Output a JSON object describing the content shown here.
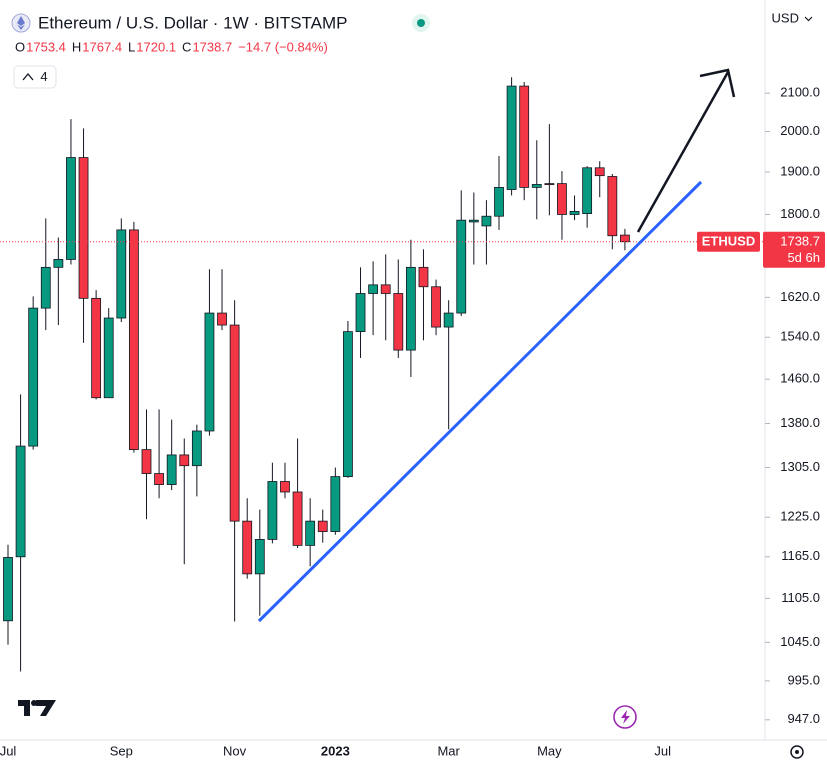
{
  "chart_data": {
    "type": "candlestick",
    "title": "Ethereum / U.S. Dollar · 1W · BITSTAMP",
    "ohlc_letters": [
      "O",
      "H",
      "L",
      "C"
    ],
    "change": "−14.7 (−0.84%)",
    "indicators": 4,
    "currency": "USD",
    "symbol": "ETHUSD",
    "countdown": "5d 6h",
    "up_color": "#089981",
    "down_color": "#f23645",
    "log_scale": true,
    "grid": false,
    "ylim": [
      923,
      2364
    ],
    "yticks": [
      {
        "value": 947,
        "label": "947.0"
      },
      {
        "value": 995,
        "label": "995.0"
      },
      {
        "value": 1045,
        "label": "1045.0"
      },
      {
        "value": 1105,
        "label": "1105.0"
      },
      {
        "value": 1165,
        "label": "1165.0"
      },
      {
        "value": 1225,
        "label": "1225.0"
      },
      {
        "value": 1305,
        "label": "1305.0"
      },
      {
        "value": 1380,
        "label": "1380.0"
      },
      {
        "value": 1460,
        "label": "1460.0"
      },
      {
        "value": 1540,
        "label": "1540.0"
      },
      {
        "value": 1620,
        "label": "1620.0"
      },
      {
        "value": 1800,
        "label": "1800.0"
      },
      {
        "value": 1900,
        "label": "1900.0"
      },
      {
        "value": 2000,
        "label": "2000.0"
      },
      {
        "value": 2100,
        "label": "2100.0"
      }
    ],
    "categories": [
      "Jul",
      null,
      null,
      null,
      null,
      null,
      null,
      null,
      null,
      "Sep",
      null,
      null,
      null,
      null,
      null,
      null,
      null,
      null,
      "Nov",
      null,
      null,
      null,
      null,
      null,
      null,
      null,
      "2023",
      null,
      null,
      null,
      null,
      null,
      null,
      null,
      null,
      "Mar",
      null,
      null,
      null,
      null,
      null,
      null,
      null,
      "May",
      null,
      null,
      null,
      null,
      null,
      null,
      null,
      null,
      "Jul"
    ],
    "open": [
      1074,
      1165,
      1341,
      1598,
      1683,
      1700,
      1935,
      1618,
      1426,
      1578,
      1765,
      1335,
      1295,
      1277,
      1326,
      1308,
      1367,
      1588,
      1564,
      1219,
      1140,
      1191,
      1282,
      1265,
      1182,
      1219,
      1203,
      1290,
      1551,
      1628,
      1646,
      1628,
      1515,
      1683,
      1642,
      1560,
      1588,
      1783,
      1774,
      1796,
      1858,
      2119,
      1863,
      1872,
      1872,
      1800,
      1802,
      1910,
      1889,
      1753.4,
      null,
      null,
      null
    ],
    "high": [
      1183,
      1432,
      1622,
      1791,
      1748,
      2032,
      2008,
      1635,
      1598,
      1791,
      1783,
      1405,
      1405,
      1387,
      1354,
      1378,
      1679,
      1679,
      1614,
      1255,
      1237,
      1313,
      1313,
      1354,
      1255,
      1237,
      1305,
      1572,
      1683,
      1696,
      1711,
      1700,
      1743,
      1722,
      1657,
      1614,
      1856,
      1851,
      1833,
      1939,
      2143,
      2130,
      1978,
      2019,
      1902,
      1844,
      1914,
      1926,
      1895,
      1767.4,
      null,
      null,
      null
    ],
    "low": [
      1042,
      1007,
      1335,
      1554,
      1564,
      1689,
      1529,
      1423,
      1426,
      1570,
      1330,
      1222,
      1255,
      1268,
      1154,
      1258,
      1359,
      1554,
      1073,
      1133,
      1081,
      1185,
      1255,
      1178,
      1151,
      1186,
      1198,
      1288,
      1500,
      1544,
      1534,
      1500,
      1464,
      1534,
      1544,
      1370,
      1582,
      1689,
      1689,
      1765,
      1844,
      1833,
      1789,
      1798,
      1743,
      1787,
      1770,
      1840,
      1722,
      1720.1,
      null,
      null,
      null
    ],
    "close": [
      1164,
      1341,
      1598,
      1683,
      1700,
      1935,
      1618,
      1426,
      1578,
      1765,
      1335,
      1295,
      1277,
      1326,
      1308,
      1367,
      1588,
      1564,
      1219,
      1140,
      1191,
      1282,
      1265,
      1182,
      1219,
      1203,
      1290,
      1551,
      1628,
      1646,
      1628,
      1515,
      1683,
      1642,
      1560,
      1588,
      1787,
      1787,
      1796,
      1863,
      2119,
      1863,
      1870,
      1870,
      1800,
      1807,
      1910,
      1891,
      1752,
      1738.7,
      null,
      null,
      null
    ]
  }
}
